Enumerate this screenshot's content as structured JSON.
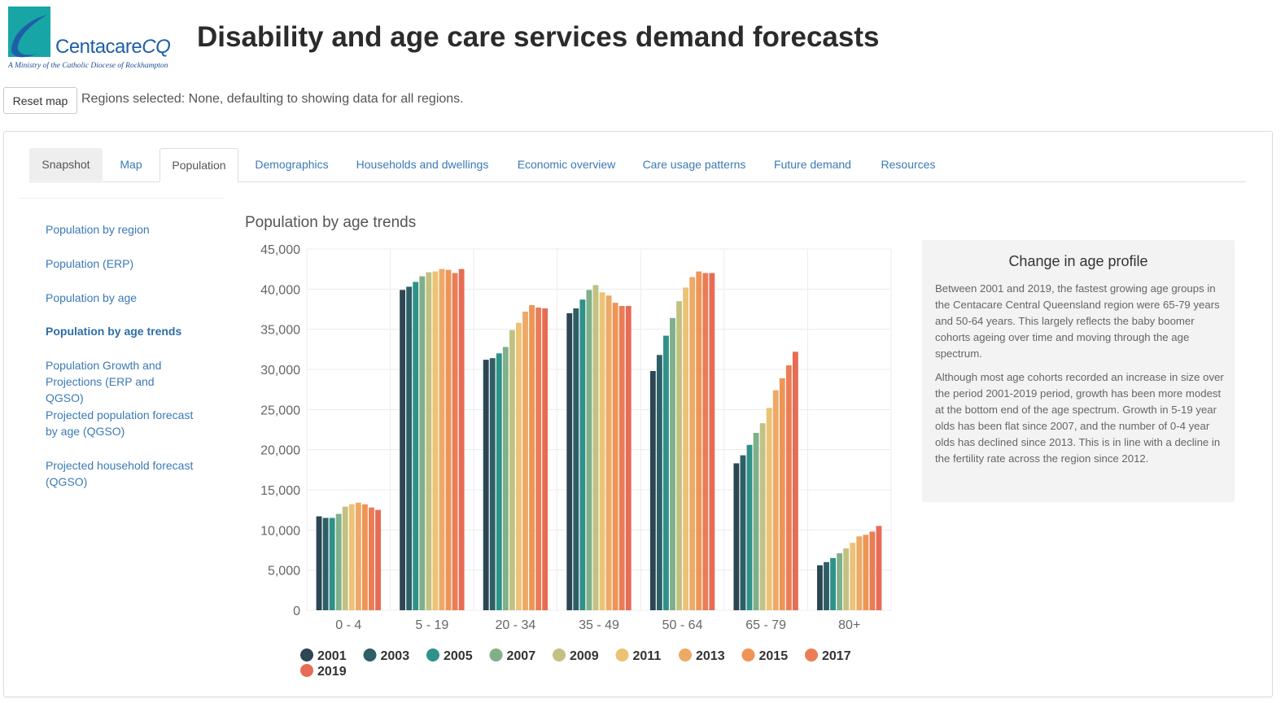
{
  "logo": {
    "name": "CentacareCQ",
    "tagline": "A Ministry of the Catholic Diocese of Rockhampton"
  },
  "header": {
    "title": "Disability and age care services demand forecasts"
  },
  "toolbar": {
    "reset_label": "Reset map",
    "regions_text": "Regions selected: None, defaulting to showing data for all regions."
  },
  "tabs": [
    {
      "label": "Snapshot"
    },
    {
      "label": "Map"
    },
    {
      "label": "Population"
    },
    {
      "label": "Demographics"
    },
    {
      "label": "Households and dwellings"
    },
    {
      "label": "Economic overview"
    },
    {
      "label": "Care usage patterns"
    },
    {
      "label": "Future demand"
    },
    {
      "label": "Resources"
    }
  ],
  "sidebar": {
    "items": [
      {
        "label": "Population by region"
      },
      {
        "label": "Population (ERP)"
      },
      {
        "label": "Population by age"
      },
      {
        "label": "Population by age trends"
      },
      {
        "label": "Population Growth and Projections (ERP and QGSO)"
      },
      {
        "label": "Projected population forecast by age (QGSO)"
      },
      {
        "label": "Projected household forecast (QGSO)"
      }
    ]
  },
  "colors": {
    "series": [
      "#2d4654",
      "#2e5f66",
      "#2e9289",
      "#7fb08a",
      "#c2c182",
      "#ecc275",
      "#eda966",
      "#ee9556",
      "#ea7d56",
      "#e76c55"
    ],
    "link": "#3a7ab6"
  },
  "chart_data": {
    "type": "bar",
    "title": "Population by age trends",
    "categories": [
      "0 - 4",
      "5 - 19",
      "20 - 34",
      "35 - 49",
      "50 - 64",
      "65 - 79",
      "80+"
    ],
    "ylim": [
      0,
      45000
    ],
    "yticks": [
      "0",
      "5,000",
      "10,000",
      "15,000",
      "20,000",
      "25,000",
      "30,000",
      "35,000",
      "40,000",
      "45,000"
    ],
    "grid": true,
    "legend_position": "bottom",
    "series": [
      {
        "name": "2001",
        "values": [
          11700,
          39900,
          31200,
          37000,
          29800,
          18300,
          5600
        ]
      },
      {
        "name": "2003",
        "values": [
          11500,
          40300,
          31400,
          37600,
          31800,
          19300,
          6000
        ]
      },
      {
        "name": "2005",
        "values": [
          11500,
          40900,
          32000,
          38700,
          34200,
          20600,
          6500
        ]
      },
      {
        "name": "2007",
        "values": [
          12000,
          41600,
          32800,
          39900,
          36400,
          22100,
          7100
        ]
      },
      {
        "name": "2009",
        "values": [
          12900,
          42100,
          34900,
          40500,
          38500,
          23300,
          7700
        ]
      },
      {
        "name": "2011",
        "values": [
          13200,
          42200,
          35800,
          39600,
          40200,
          25200,
          8400
        ]
      },
      {
        "name": "2013",
        "values": [
          13400,
          42500,
          37200,
          39200,
          41500,
          27400,
          9200
        ]
      },
      {
        "name": "2015",
        "values": [
          13200,
          42400,
          38000,
          38300,
          42200,
          28900,
          9400
        ]
      },
      {
        "name": "2017",
        "values": [
          12800,
          42000,
          37700,
          37900,
          42000,
          30500,
          9800
        ]
      },
      {
        "name": "2019",
        "values": [
          12500,
          42500,
          37600,
          37900,
          42000,
          32200,
          10500
        ]
      }
    ]
  },
  "info": {
    "title": "Change in age profile",
    "p1": "Between 2001 and 2019, the fastest growing age groups in the Centacare Central Queensland region were 65-79 years and 50-64 years. This largely reflects the baby boomer cohorts ageing over time and moving through the age spectrum.",
    "p2": "Although most age cohorts recorded an increase in size over the period 2001-2019 period, growth has been more modest at the bottom end of the age spectrum. Growth in 5-19 year olds has been flat since 2007, and the number of 0-4 year olds has declined since 2013. This is in line with a decline in the fertility rate across the region since 2012."
  }
}
